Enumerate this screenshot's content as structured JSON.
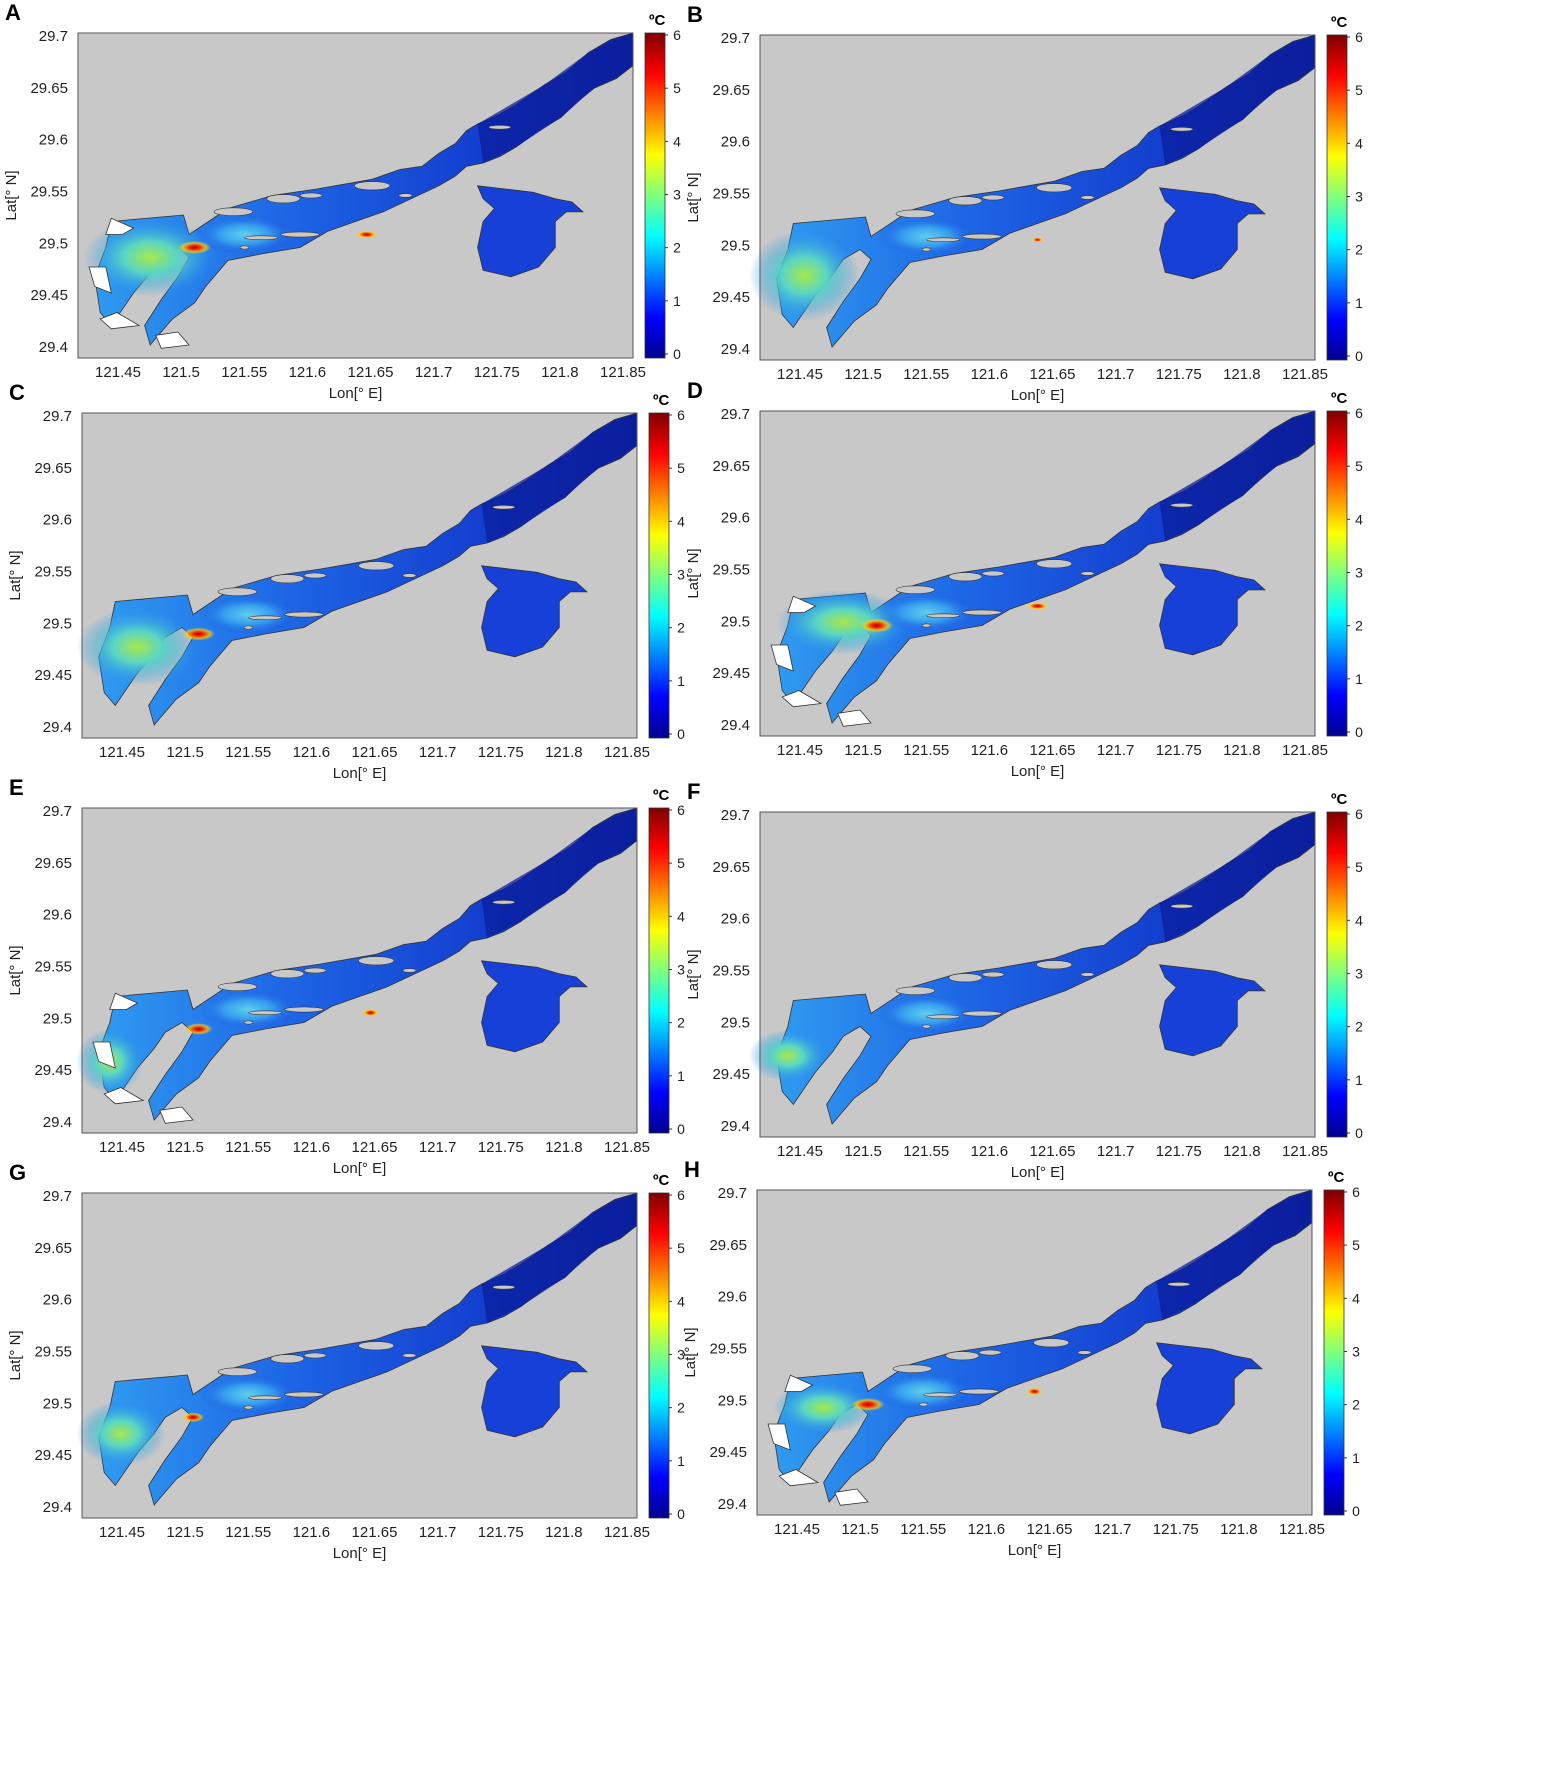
{
  "figure": {
    "panels": [
      {
        "label": "A",
        "xlabel": "Lon[° E]",
        "ylabel": "Lat[° N]",
        "colorbar_unit": "ºC"
      },
      {
        "label": "B",
        "xlabel": "Lon[° E]",
        "ylabel": "Lat[° N]",
        "colorbar_unit": "ºC"
      },
      {
        "label": "C",
        "xlabel": "Lon[° E]",
        "ylabel": "Lat[° N]",
        "colorbar_unit": "ºC"
      },
      {
        "label": "D",
        "xlabel": "Lon[° E]",
        "ylabel": "Lat[° N]",
        "colorbar_unit": "ºC"
      },
      {
        "label": "E",
        "xlabel": "Lon[° E]",
        "ylabel": "Lat[° N]",
        "colorbar_unit": "ºC"
      },
      {
        "label": "F",
        "xlabel": "Lon[° E]",
        "ylabel": "Lat[° N]",
        "colorbar_unit": "ºC"
      },
      {
        "label": "G",
        "xlabel": "Lon[° E]",
        "ylabel": "Lat[° N]",
        "colorbar_unit": "ºC"
      },
      {
        "label": "H",
        "xlabel": "Lon[° E]",
        "ylabel": "Lat[° N]",
        "colorbar_unit": "ºC"
      }
    ],
    "x_ticks": [
      "121.45",
      "121.5",
      "121.55",
      "121.6",
      "121.65",
      "121.7",
      "121.75",
      "121.8",
      "121.85"
    ],
    "y_ticks": [
      "29.7",
      "29.65",
      "29.6",
      "29.55",
      "29.5",
      "29.45",
      "29.4"
    ],
    "colorbar_ticks": [
      "6",
      "5",
      "4",
      "3",
      "2",
      "1",
      "0"
    ],
    "colors": {
      "land": "#c8c8c8",
      "water_deep": "#0b1f9e",
      "water_base": "#1640d8",
      "warm": "#d01010",
      "mid": "#49d4e8"
    }
  }
}
